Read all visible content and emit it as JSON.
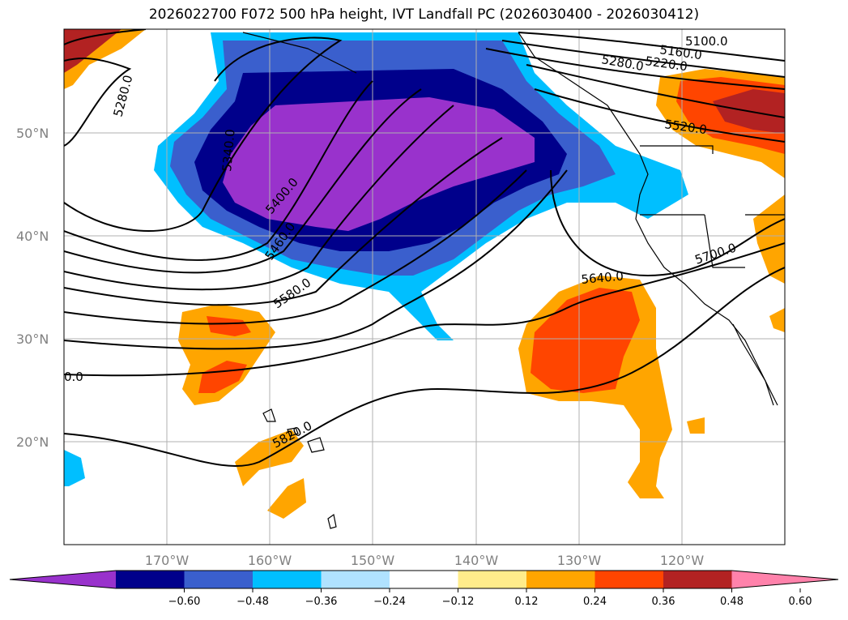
{
  "title": "2026022700 F072 500 hPa height, IVT Landfall PC (2026030400 - 2026030412)",
  "map": {
    "lat_labels": [
      "50°N",
      "40°N",
      "30°N",
      "20°N"
    ],
    "lon_labels": [
      "170°W",
      "160°W",
      "150°W",
      "140°W",
      "130°W",
      "120°W"
    ],
    "contour_labels": [
      "5100.0",
      "5160.0",
      "5220.0",
      "5280.0",
      "5280.0",
      "5340.0",
      "5400.0",
      "5460.0",
      "5520.0",
      "5580.0",
      "5640.0",
      "5700.0",
      "5820.0",
      "0.0"
    ]
  },
  "colorbar": {
    "ticks": [
      "−0.60",
      "−0.48",
      "−0.36",
      "−0.24",
      "−0.12",
      "0.12",
      "0.24",
      "0.36",
      "0.48",
      "0.60"
    ],
    "colors": [
      "#9932cc",
      "#00008b",
      "#3a5fcd",
      "#00bfff",
      "#b0e2ff",
      "#ffffff",
      "#ffec8b",
      "#ffa500",
      "#ff4500",
      "#b22222",
      "#ff82ab"
    ]
  }
}
